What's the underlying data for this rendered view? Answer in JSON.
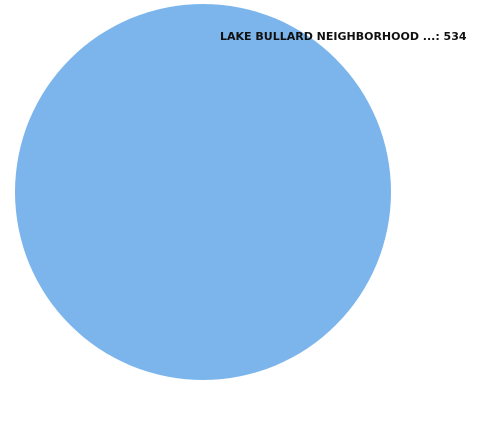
{
  "chart_data": {
    "type": "pie",
    "title": "",
    "slices": [
      {
        "label": "LAKE BULLARD NEIGHBORHOOD ...",
        "value": 534,
        "color": "#7cb5ec"
      }
    ],
    "legend": "none",
    "data_labels": "outside-with-leader"
  }
}
